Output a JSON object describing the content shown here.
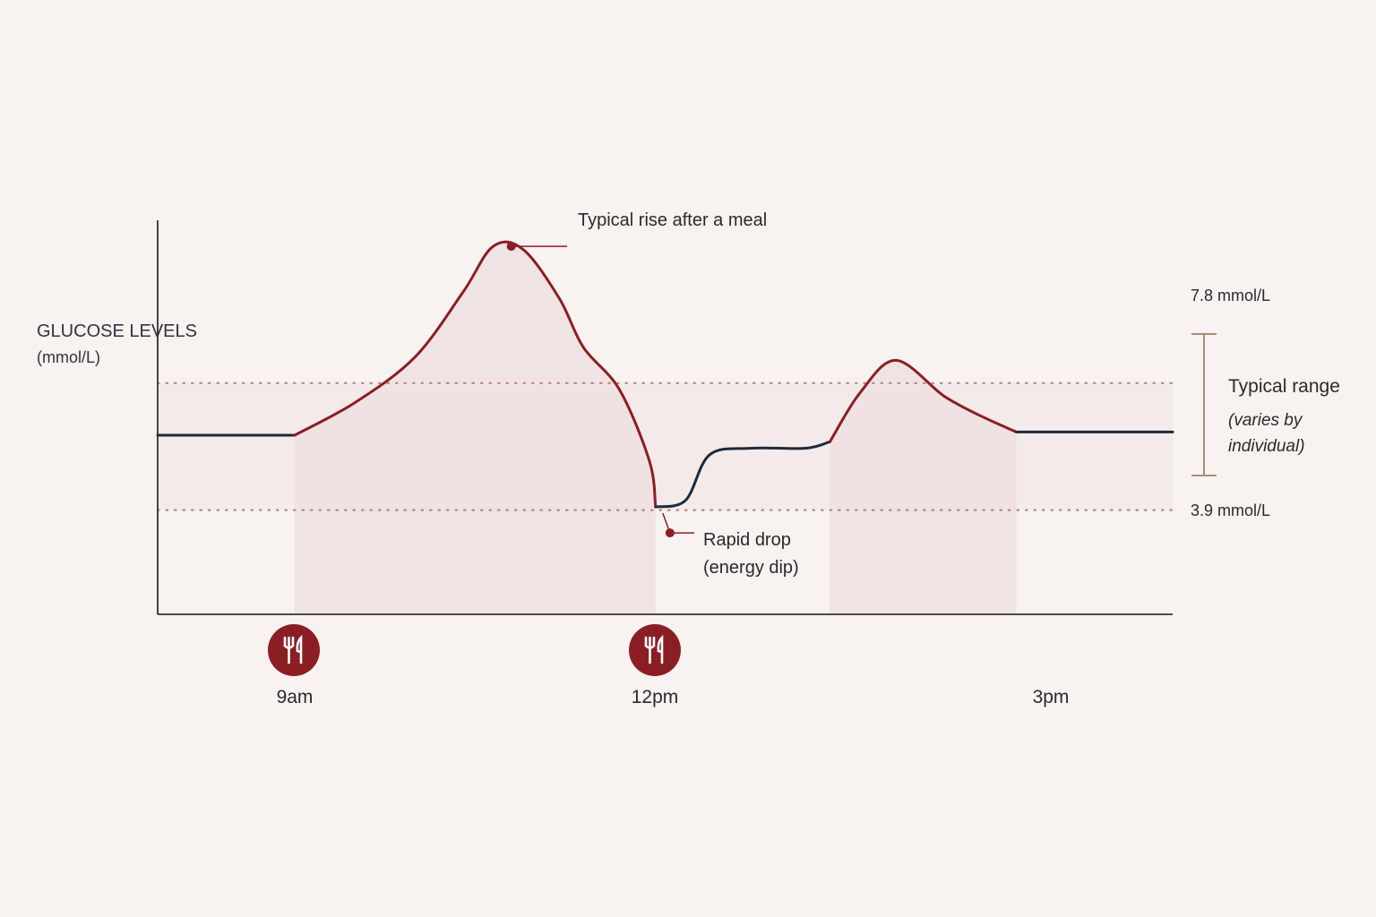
{
  "chart_data": {
    "type": "line",
    "title": "",
    "ylabel": "GLUCOSE LEVELS",
    "yunit": "(mmol/L)",
    "xlabel": "",
    "x_ticks": [
      {
        "label": "9am",
        "hour": 9
      },
      {
        "label": "12pm",
        "hour": 12
      },
      {
        "label": "3pm",
        "hour": 15
      }
    ],
    "xlim": [
      7.86,
      16.3
    ],
    "ylim": [
      0.7,
      12.8
    ],
    "grid": false,
    "series": [
      {
        "points": [
          [
            7.86,
            6.2
          ],
          [
            8.3,
            6.2
          ],
          [
            9.0,
            6.2
          ],
          [
            9.5,
            7.2
          ],
          [
            10.0,
            8.6
          ],
          [
            10.4,
            10.6
          ],
          [
            10.65,
            12.0
          ],
          [
            10.9,
            11.9
          ],
          [
            11.2,
            10.4
          ],
          [
            11.4,
            8.9
          ],
          [
            11.7,
            7.6
          ],
          [
            11.95,
            5.4
          ],
          [
            12.0,
            4.0
          ],
          [
            12.25,
            4.2
          ],
          [
            12.45,
            5.6
          ],
          [
            12.8,
            5.8
          ],
          [
            13.25,
            5.8
          ],
          [
            13.45,
            6.0
          ],
          [
            13.7,
            7.5
          ],
          [
            14.0,
            8.5
          ],
          [
            14.4,
            7.4
          ],
          [
            14.7,
            6.8
          ],
          [
            15.0,
            6.3
          ],
          [
            15.5,
            6.3
          ],
          [
            16.3,
            6.3
          ]
        ],
        "highlight_ranges": [
          [
            9.0,
            12.0
          ],
          [
            13.45,
            15.0
          ]
        ]
      }
    ],
    "reference_lines": [
      {
        "label": "7.8 mmol/L",
        "value": 7.8
      },
      {
        "label": "3.9 mmol/L",
        "value": 3.9
      }
    ],
    "range_note": {
      "title": "Typical range",
      "subtitle": "(varies by individual)"
    },
    "annotations": [
      {
        "id": "peak",
        "text": "Typical rise after a meal",
        "at": [
          10.8,
          12.0
        ]
      },
      {
        "id": "dip",
        "lines": [
          "Rapid drop",
          "(energy dip)"
        ],
        "at": [
          12.12,
          3.2
        ]
      }
    ],
    "meal_markers": [
      {
        "hour": 9,
        "icon": "fork-knife-icon"
      },
      {
        "hour": 12,
        "icon": "fork-knife-icon"
      }
    ],
    "colors": {
      "baseline_line": "#1e2a3a",
      "spike_line": "#8b1e24",
      "range_band": "#f1e4e3",
      "spike_fill": "#efe1e0",
      "reference_dots": "#b08b7e",
      "range_bracket": "#a89079",
      "meal_icon_bg": "#8b1e24"
    }
  }
}
